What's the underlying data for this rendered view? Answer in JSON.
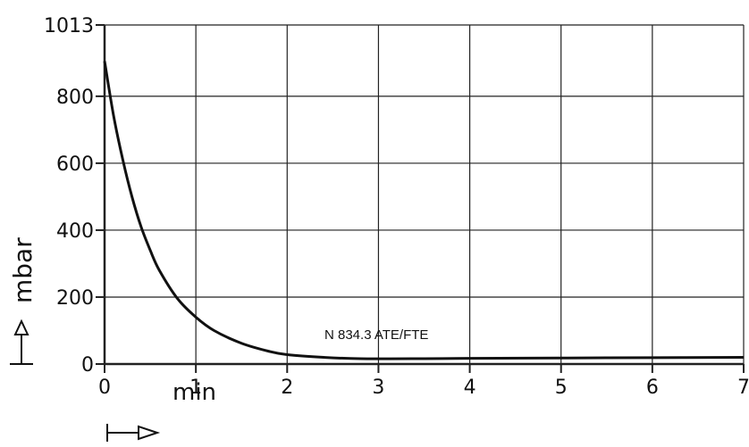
{
  "chart_data": {
    "type": "line",
    "title": "",
    "xlabel": "min",
    "ylabel": "mbar",
    "xlim": [
      0,
      7
    ],
    "ylim": [
      0,
      1013
    ],
    "x_ticks": [
      "0",
      "1",
      "2",
      "3",
      "4",
      "5",
      "6",
      "7"
    ],
    "y_ticks": [
      {
        "value": 0,
        "label": "0"
      },
      {
        "value": 200,
        "label": "200"
      },
      {
        "value": 400,
        "label": "400"
      },
      {
        "value": 600,
        "label": "600"
      },
      {
        "value": 800,
        "label": "800"
      },
      {
        "value": 1013,
        "label": "1013"
      }
    ],
    "grid": true,
    "series": [
      {
        "x": [
          0,
          0.1,
          0.2,
          0.3,
          0.4,
          0.5,
          0.6,
          0.8,
          1.0,
          1.2,
          1.5,
          1.8,
          2.0,
          2.4,
          2.8,
          3.5,
          4.0,
          5.0,
          6.0,
          7.0
        ],
        "y": [
          905,
          740,
          610,
          500,
          410,
          340,
          280,
          195,
          140,
          100,
          62,
          38,
          28,
          20,
          16,
          16,
          17,
          18,
          19,
          20
        ]
      }
    ],
    "annotations": [
      "N 834.3 ATE/FTE"
    ],
    "line_color": "#111111",
    "grid_color": "#222222"
  }
}
